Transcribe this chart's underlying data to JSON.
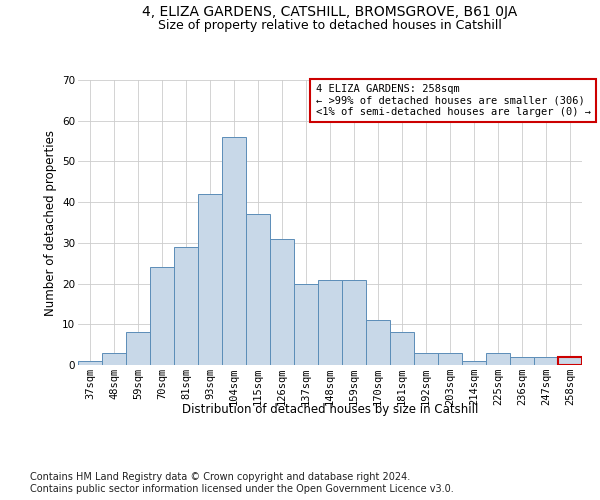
{
  "title1": "4, ELIZA GARDENS, CATSHILL, BROMSGROVE, B61 0JA",
  "title2": "Size of property relative to detached houses in Catshill",
  "xlabel": "Distribution of detached houses by size in Catshill",
  "ylabel": "Number of detached properties",
  "categories": [
    "37sqm",
    "48sqm",
    "59sqm",
    "70sqm",
    "81sqm",
    "93sqm",
    "104sqm",
    "115sqm",
    "126sqm",
    "137sqm",
    "148sqm",
    "159sqm",
    "170sqm",
    "181sqm",
    "192sqm",
    "203sqm",
    "214sqm",
    "225sqm",
    "236sqm",
    "247sqm",
    "258sqm"
  ],
  "values": [
    1,
    3,
    8,
    24,
    29,
    42,
    56,
    37,
    31,
    20,
    21,
    21,
    11,
    8,
    3,
    3,
    1,
    3,
    2,
    2,
    2
  ],
  "bar_color": "#c8d8e8",
  "bar_edge_color": "#5b8db8",
  "highlight_bar_index": 20,
  "highlight_bar_edge_color": "#cc0000",
  "annotation_text": "4 ELIZA GARDENS: 258sqm\n← >99% of detached houses are smaller (306)\n<1% of semi-detached houses are larger (0) →",
  "annotation_box_edge_color": "#cc0000",
  "ylim": [
    0,
    70
  ],
  "yticks": [
    0,
    10,
    20,
    30,
    40,
    50,
    60,
    70
  ],
  "footer1": "Contains HM Land Registry data © Crown copyright and database right 2024.",
  "footer2": "Contains public sector information licensed under the Open Government Licence v3.0.",
  "title1_fontsize": 10,
  "title2_fontsize": 9,
  "axis_label_fontsize": 8.5,
  "tick_fontsize": 7.5,
  "footer_fontsize": 7,
  "annotation_fontsize": 7.5,
  "background_color": "#ffffff",
  "grid_color": "#cccccc"
}
